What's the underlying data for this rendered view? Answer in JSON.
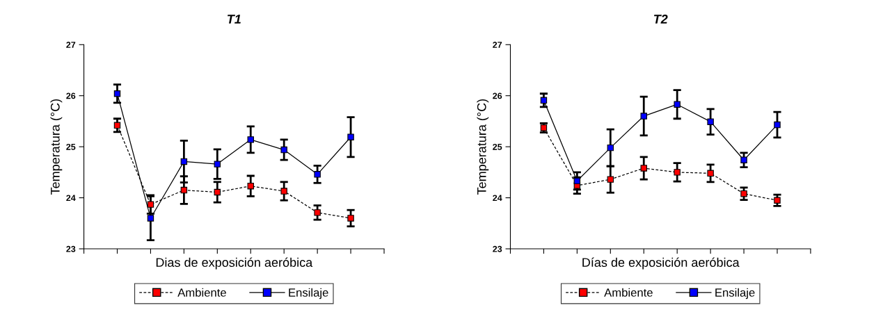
{
  "chart_data": [
    {
      "type": "line",
      "title": "T1",
      "xlabel": "Dias de exposición aeróbica",
      "ylabel": "Temperatura (°C)",
      "categories": [
        null,
        null,
        null,
        null,
        null,
        null,
        null,
        null
      ],
      "ylim": [
        23,
        27
      ],
      "yticks": [
        23,
        24,
        25,
        26,
        27
      ],
      "grid": false,
      "legend": "bottom",
      "marker": "square",
      "tick_labels": "y",
      "series": [
        {
          "name": "Ambiente",
          "color": "#ff0000",
          "line_style": "dashed",
          "values": [
            25.42,
            23.87,
            24.15,
            24.11,
            24.23,
            24.13,
            23.71,
            23.6
          ],
          "errors": [
            0.13,
            0.18,
            0.27,
            0.2,
            0.2,
            0.18,
            0.14,
            0.16
          ]
        },
        {
          "name": "Ensilaje",
          "color": "#0000ff",
          "line_style": "solid",
          "values": [
            26.04,
            23.6,
            24.71,
            24.66,
            25.14,
            24.94,
            24.46,
            25.19
          ],
          "errors": [
            0.18,
            0.43,
            0.41,
            0.29,
            0.26,
            0.2,
            0.17,
            0.39
          ]
        }
      ]
    },
    {
      "type": "line",
      "title": "T2",
      "xlabel": "Días de exposición aeróbica",
      "ylabel": "Temperatura (°C)",
      "categories": [
        null,
        null,
        null,
        null,
        null,
        null,
        null,
        null
      ],
      "ylim": [
        23,
        27
      ],
      "yticks": [
        23,
        24,
        25,
        26,
        27
      ],
      "grid": false,
      "legend": "bottom",
      "marker": "square",
      "tick_labels": "y",
      "series": [
        {
          "name": "Ambiente",
          "color": "#ff0000",
          "line_style": "dashed",
          "values": [
            25.37,
            24.24,
            24.36,
            24.58,
            24.5,
            24.48,
            24.08,
            23.95
          ],
          "errors": [
            0.09,
            0.16,
            0.26,
            0.22,
            0.18,
            0.17,
            0.12,
            0.11
          ]
        },
        {
          "name": "Ensilaje",
          "color": "#0000ff",
          "line_style": "solid",
          "values": [
            25.91,
            24.33,
            24.98,
            25.6,
            25.83,
            25.49,
            24.74,
            25.43
          ],
          "errors": [
            0.13,
            0.17,
            0.36,
            0.38,
            0.28,
            0.25,
            0.14,
            0.25
          ]
        }
      ]
    }
  ]
}
